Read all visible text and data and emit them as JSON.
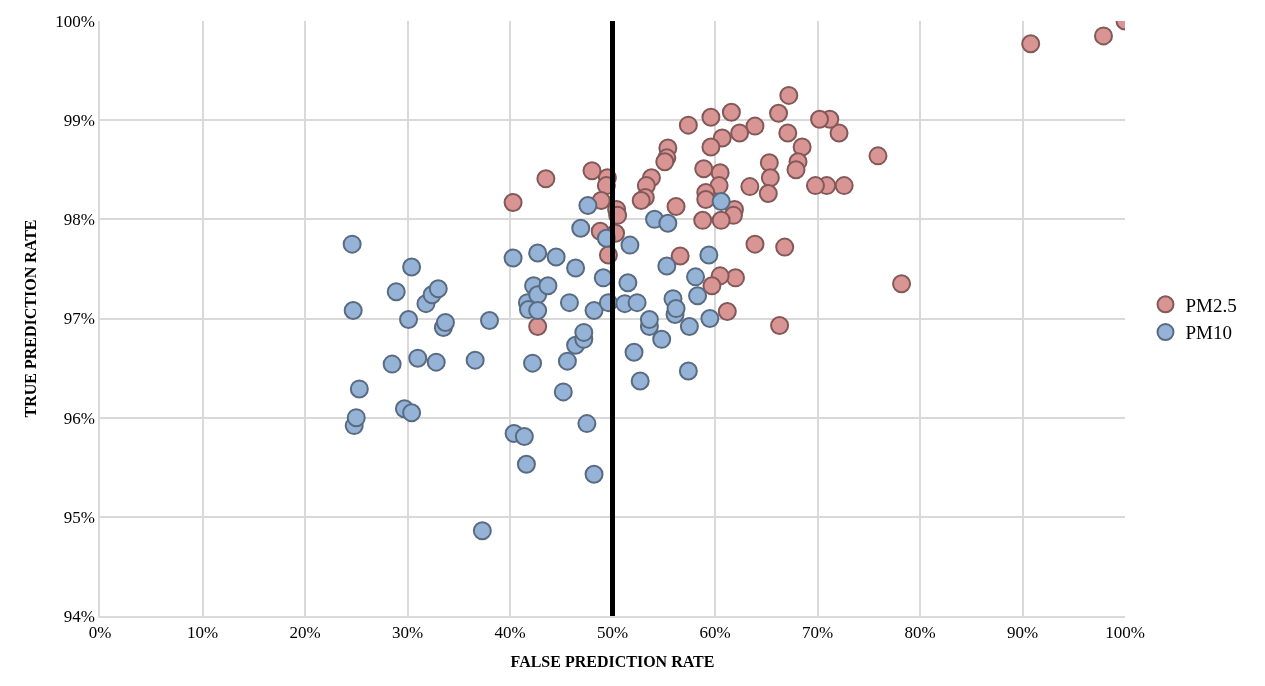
{
  "chart_data": {
    "type": "scatter",
    "xlabel": "FALSE PREDICTION RATE",
    "ylabel": "TRUE PREDICTION RATE",
    "xlim": [
      0,
      100
    ],
    "ylim": [
      94,
      100
    ],
    "xticks": [
      {
        "value": 0,
        "label": "0%"
      },
      {
        "value": 10,
        "label": "10%"
      },
      {
        "value": 20,
        "label": "20%"
      },
      {
        "value": 30,
        "label": "30%"
      },
      {
        "value": 40,
        "label": "40%"
      },
      {
        "value": 50,
        "label": "50%"
      },
      {
        "value": 60,
        "label": "60%"
      },
      {
        "value": 70,
        "label": "70%"
      },
      {
        "value": 80,
        "label": "80%"
      },
      {
        "value": 90,
        "label": "90%"
      },
      {
        "value": 100,
        "label": "100%"
      }
    ],
    "yticks": [
      {
        "value": 94,
        "label": "94%"
      },
      {
        "value": 95,
        "label": "95%"
      },
      {
        "value": 96,
        "label": "96%"
      },
      {
        "value": 97,
        "label": "97%"
      },
      {
        "value": 98,
        "label": "98%"
      },
      {
        "value": 99,
        "label": "99%"
      },
      {
        "value": 100,
        "label": "100%"
      }
    ],
    "grid": true,
    "legend": "right",
    "marker": "circle",
    "ref_lines": [
      {
        "axis": "x",
        "value": 50,
        "color": "#000000"
      }
    ],
    "series": [
      {
        "name": "PM2.5",
        "color": "#d99594",
        "x": [
          100,
          90.8,
          97.9,
          78.2,
          75.9,
          72.6,
          70.9,
          72.1,
          71.2,
          70.2,
          69.8,
          68.5,
          68.1,
          67.9,
          67.2,
          67.1,
          66.8,
          66.3,
          66.2,
          65.3,
          65.4,
          65.2,
          63.9,
          63.4,
          63.9,
          62.4,
          61.9,
          61.8,
          62.0,
          61.6,
          61.2,
          60.7,
          60.5,
          60.4,
          60.6,
          60.5,
          59.7,
          59.6,
          59.6,
          58.9,
          59.1,
          59.1,
          58.8,
          57.4,
          56.2,
          56.6,
          55.4,
          55.3,
          55.1,
          53.8,
          53.3,
          53.2,
          52.8,
          49.5,
          49.4,
          48.0,
          48.9,
          50.4,
          50.5,
          50.3,
          48.8,
          49.6,
          43.5,
          40.3,
          42.7
        ],
        "values": [
          100,
          99.77,
          99.85,
          97.35,
          98.64,
          98.34,
          98.34,
          98.87,
          99.01,
          99.01,
          98.34,
          98.73,
          98.58,
          98.5,
          99.25,
          98.87,
          97.72,
          96.93,
          99.07,
          98.57,
          98.42,
          98.26,
          97.75,
          98.33,
          98.94,
          98.87,
          98.1,
          98.04,
          97.41,
          99.08,
          97.07,
          98.82,
          98.47,
          98.34,
          97.99,
          97.43,
          97.33,
          99.03,
          98.73,
          98.51,
          98.27,
          98.2,
          97.99,
          98.95,
          98.13,
          97.63,
          98.72,
          98.62,
          98.58,
          98.42,
          98.34,
          98.22,
          98.19,
          98.42,
          98.34,
          98.49,
          98.19,
          98.1,
          98.04,
          97.86,
          97.88,
          97.64,
          98.41,
          98.17,
          96.92
        ]
      },
      {
        "name": "PM10",
        "color": "#95b3d7",
        "x": [
          24.6,
          24.7,
          24.8,
          25.0,
          25.3,
          28.5,
          28.9,
          29.7,
          30.4,
          30.1,
          30.4,
          31.0,
          31.8,
          32.4,
          33.0,
          32.8,
          33.5,
          33.7,
          36.6,
          38.0,
          40.3,
          40.4,
          41.4,
          41.6,
          41.7,
          41.8,
          42.3,
          42.2,
          42.7,
          42.7,
          42.7,
          43.7,
          37.3,
          44.5,
          45.2,
          45.6,
          45.8,
          46.4,
          46.4,
          46.9,
          47.2,
          47.2,
          47.5,
          47.6,
          48.2,
          48.2,
          49.1,
          49.4,
          49.6,
          51.2,
          51.5,
          51.7,
          52.1,
          52.4,
          52.7,
          53.6,
          53.6,
          54.1,
          54.8,
          55.3,
          55.4,
          55.9,
          56.1,
          56.2,
          57.4,
          57.5,
          58.1,
          58.3,
          59.4,
          59.5,
          60.6
        ],
        "values": [
          97.75,
          97.08,
          95.92,
          96.0,
          96.29,
          96.54,
          97.27,
          96.09,
          96.05,
          96.99,
          97.52,
          96.6,
          97.15,
          97.24,
          97.3,
          96.56,
          96.91,
          96.96,
          96.58,
          96.98,
          97.61,
          95.84,
          95.81,
          95.53,
          97.16,
          97.09,
          97.33,
          96.55,
          97.66,
          97.24,
          97.08,
          97.33,
          94.86,
          97.62,
          96.26,
          96.57,
          97.16,
          97.51,
          96.73,
          97.91,
          96.79,
          96.86,
          95.94,
          98.14,
          97.08,
          95.43,
          97.41,
          97.81,
          97.16,
          97.15,
          97.36,
          97.74,
          96.66,
          97.16,
          96.37,
          96.92,
          96.99,
          98.0,
          96.79,
          97.53,
          97.96,
          97.2,
          97.04,
          97.1,
          96.47,
          96.92,
          97.42,
          97.23,
          97.64,
          97.0,
          98.18
        ]
      }
    ]
  }
}
